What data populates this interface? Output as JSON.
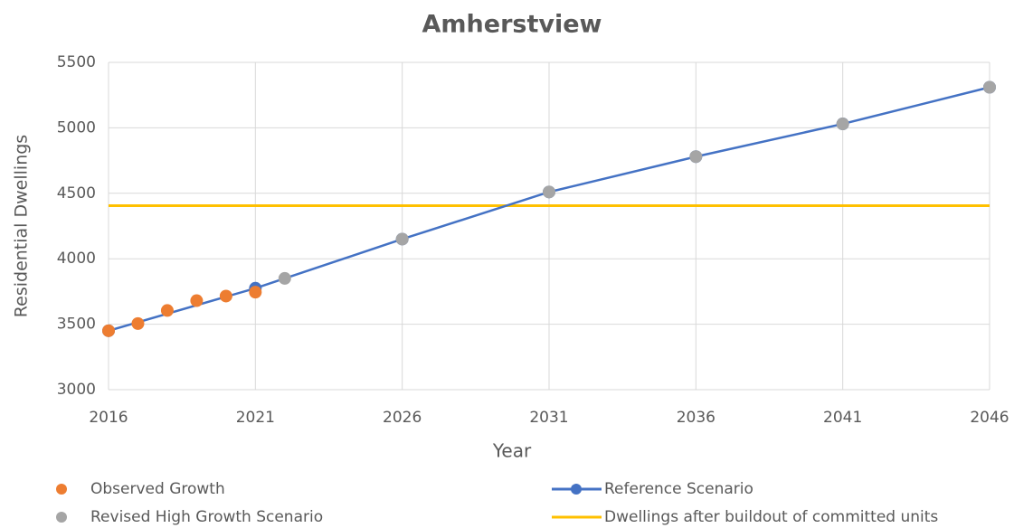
{
  "chart_data": {
    "type": "line",
    "title": "Amherstview",
    "x_label": "Year",
    "y_label": "Residential Dwellings",
    "xlim": [
      2016,
      2046
    ],
    "xticks": [
      2016,
      2021,
      2026,
      2031,
      2036,
      2041,
      2046
    ],
    "ylim": [
      3000,
      5500
    ],
    "yticks": [
      3000,
      3500,
      4000,
      4500,
      5000,
      5500
    ],
    "grid": true,
    "legend": "bottom",
    "series": [
      {
        "name": "Observed Growth",
        "color": "#ed7d31",
        "style": "markers",
        "x": [
          2016,
          2017,
          2018,
          2019,
          2020,
          2021
        ],
        "values": [
          3450,
          3505,
          3605,
          3680,
          3715,
          3745
        ]
      },
      {
        "name": "Reference Scenario",
        "color": "#4472c4",
        "style": "line+markers",
        "x": [
          2016,
          2021,
          2026,
          2031,
          2036,
          2041,
          2046
        ],
        "values": [
          3450,
          3775,
          4150,
          4510,
          4780,
          5030,
          5310
        ]
      },
      {
        "name": "Revised High Growth Scenario",
        "color": "#a5a5a5",
        "style": "markers",
        "x": [
          2022,
          2026,
          2031,
          2036,
          2041,
          2046
        ],
        "values": [
          3850,
          4150,
          4510,
          4780,
          5030,
          5310
        ]
      },
      {
        "name": "Dwellings after buildout of committed units",
        "color": "#ffc000",
        "style": "line",
        "x": [
          2016,
          2046
        ],
        "values": [
          4405,
          4405
        ]
      }
    ]
  }
}
